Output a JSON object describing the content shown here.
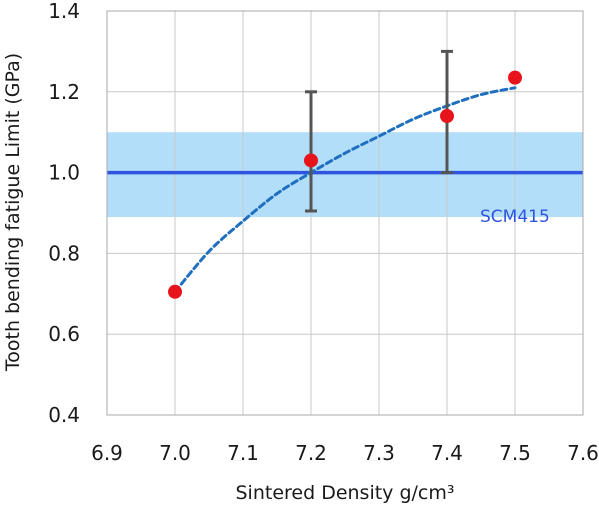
{
  "chart_data": {
    "type": "scatter",
    "xlabel": "Sintered Density  g/cm³",
    "ylabel": "Tooth bending fatigue Limit  (GPa)",
    "xlim": [
      6.9,
      7.6
    ],
    "ylim": [
      0.4,
      1.4
    ],
    "x_ticks": [
      "6.9",
      "7.0",
      "7.1",
      "7.2",
      "7.3",
      "7.4",
      "7.5",
      "7.6"
    ],
    "y_ticks": [
      "0.4",
      "0.6",
      "0.8",
      "1.0",
      "1.2",
      "1.4"
    ],
    "grid": true,
    "points": [
      {
        "x": 7.0,
        "y": 0.705
      },
      {
        "x": 7.2,
        "y": 1.03
      },
      {
        "x": 7.4,
        "y": 1.14
      },
      {
        "x": 7.5,
        "y": 1.235
      }
    ],
    "error_bars": [
      {
        "x": 7.2,
        "low": 0.905,
        "high": 1.2
      },
      {
        "x": 7.4,
        "low": 1.0,
        "high": 1.3
      }
    ],
    "trend_curve": [
      {
        "x": 7.0,
        "y": 0.705
      },
      {
        "x": 7.05,
        "y": 0.805
      },
      {
        "x": 7.1,
        "y": 0.88
      },
      {
        "x": 7.15,
        "y": 0.948
      },
      {
        "x": 7.2,
        "y": 1.0
      },
      {
        "x": 7.25,
        "y": 1.048
      },
      {
        "x": 7.3,
        "y": 1.09
      },
      {
        "x": 7.35,
        "y": 1.132
      },
      {
        "x": 7.4,
        "y": 1.165
      },
      {
        "x": 7.45,
        "y": 1.193
      },
      {
        "x": 7.5,
        "y": 1.21
      }
    ],
    "reference": {
      "label": "SCM415",
      "value": 1.0,
      "band": [
        0.89,
        1.1
      ]
    },
    "colors": {
      "points": "#e8141c",
      "trend": "#1f6fc0",
      "reference_line": "#2f55e0",
      "band": "#b3defa",
      "error_bars": "#555555",
      "grid": "#c8c8c8"
    }
  }
}
